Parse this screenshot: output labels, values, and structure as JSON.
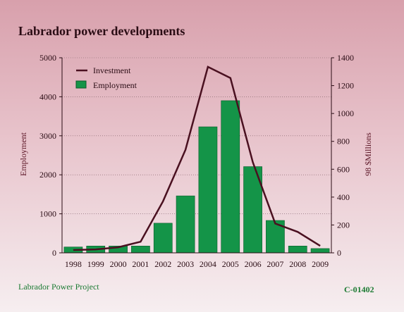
{
  "title": "Labrador power developments",
  "footer": {
    "left": "Labrador Power Project",
    "right": "C-01402"
  },
  "colors": {
    "bar": "#149448",
    "bar_edge": "#0b5c2a",
    "line": "#4a1020"
  },
  "chart_data": {
    "type": "bar",
    "categories": [
      "1998",
      "1999",
      "2000",
      "2001",
      "2002",
      "2003",
      "2004",
      "2005",
      "2006",
      "2007",
      "2008",
      "2009"
    ],
    "series": [
      {
        "name": "Employment",
        "type": "bar",
        "axis": "left",
        "values": [
          150,
          175,
          175,
          175,
          760,
          1460,
          3230,
          3900,
          2210,
          830,
          175,
          110
        ]
      },
      {
        "name": "Investment",
        "type": "line",
        "axis": "right",
        "values": [
          20,
          25,
          40,
          80,
          370,
          740,
          1335,
          1255,
          650,
          210,
          150,
          50
        ]
      }
    ],
    "ylabel": "Employment",
    "ylim": [
      0,
      5000
    ],
    "yticks": [
      0,
      1000,
      2000,
      3000,
      4000,
      5000
    ],
    "y2label": "98 $Millions",
    "y2lim": [
      0,
      1400
    ],
    "y2ticks": [
      0,
      200,
      400,
      600,
      800,
      1000,
      1200,
      1400
    ],
    "grid": true,
    "legend": "top-left"
  }
}
